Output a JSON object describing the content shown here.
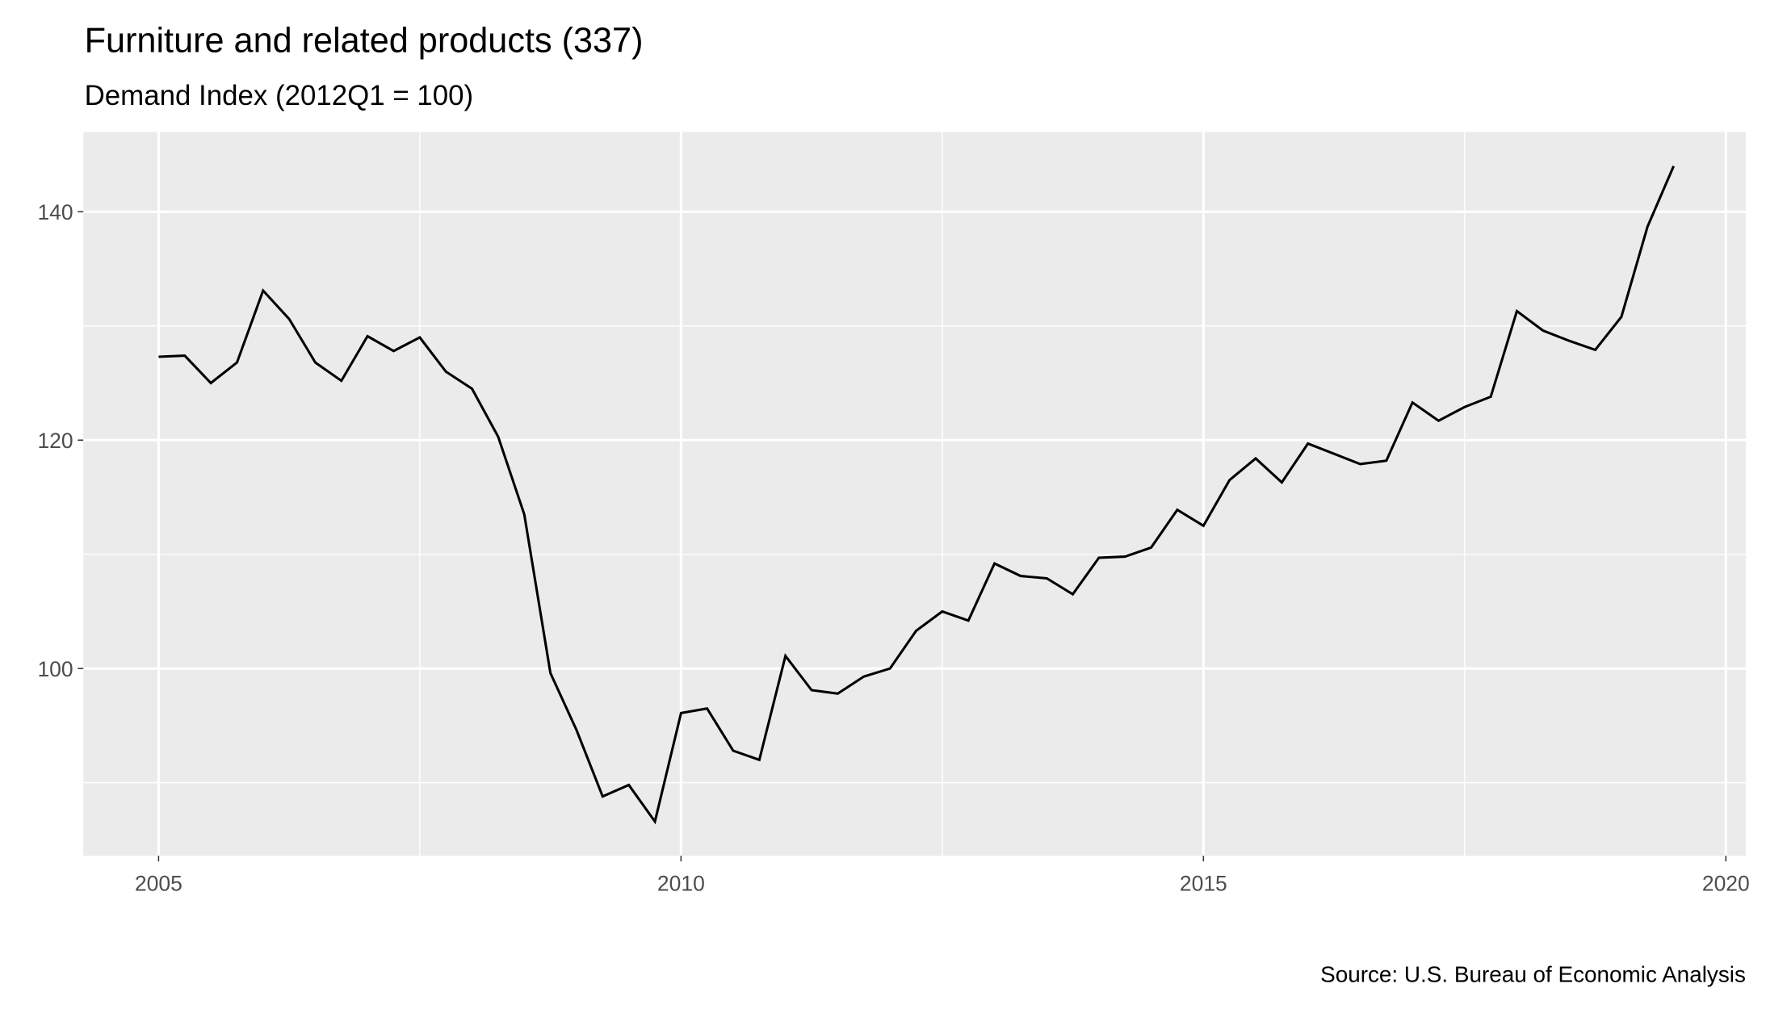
{
  "chart_data": {
    "type": "line",
    "title": "Furniture and related products (337)",
    "subtitle": "Demand Index (2012Q1 = 100)",
    "caption": "Source: U.S. Bureau of Economic Analysis",
    "xlabel": "",
    "ylabel": "",
    "xlim": [
      2004.28,
      2020.19
    ],
    "ylim": [
      83.6,
      147.0
    ],
    "x_ticks": [
      2005,
      2010,
      2015,
      2020
    ],
    "x_tick_labels": [
      "2005",
      "2010",
      "2015",
      "2020"
    ],
    "y_ticks": [
      100,
      120,
      140
    ],
    "y_tick_labels": [
      "100",
      "120",
      "140"
    ],
    "x_minor": [
      2007.5,
      2012.5,
      2017.5
    ],
    "y_minor": [
      90,
      110,
      130
    ],
    "grid": true,
    "colors": {
      "panel": "#EBEBEB",
      "grid": "#FFFFFF",
      "line": "#000000",
      "text": "#000000",
      "tick_text": "#4D4D4D"
    },
    "series": [
      {
        "name": "Demand Index",
        "x": [
          2005.0,
          2005.25,
          2005.5,
          2005.75,
          2006.0,
          2006.25,
          2006.5,
          2006.75,
          2007.0,
          2007.25,
          2007.5,
          2007.75,
          2008.0,
          2008.25,
          2008.5,
          2008.75,
          2009.0,
          2009.25,
          2009.5,
          2009.75,
          2010.0,
          2010.25,
          2010.5,
          2010.75,
          2011.0,
          2011.25,
          2011.5,
          2011.75,
          2012.0,
          2012.25,
          2012.5,
          2012.75,
          2013.0,
          2013.25,
          2013.5,
          2013.75,
          2014.0,
          2014.25,
          2014.5,
          2014.75,
          2015.0,
          2015.25,
          2015.5,
          2015.75,
          2016.0,
          2016.25,
          2016.5,
          2016.75,
          2017.0,
          2017.25,
          2017.5,
          2017.75,
          2018.0,
          2018.25,
          2018.5,
          2018.75,
          2019.0,
          2019.25,
          2019.5
        ],
        "values": [
          127.3,
          127.4,
          125.0,
          126.8,
          133.1,
          130.6,
          126.8,
          125.2,
          129.1,
          127.8,
          129.0,
          126.0,
          124.5,
          120.3,
          113.5,
          99.6,
          94.6,
          88.8,
          89.8,
          86.6,
          96.1,
          96.5,
          92.8,
          92.0,
          101.1,
          98.1,
          97.8,
          99.3,
          100.0,
          103.3,
          105.0,
          104.2,
          109.2,
          108.1,
          107.9,
          106.5,
          109.7,
          109.8,
          110.6,
          113.9,
          112.5,
          116.5,
          118.4,
          116.3,
          119.7,
          118.8,
          117.9,
          118.2,
          123.3,
          121.7,
          122.9,
          123.8,
          131.3,
          129.6,
          128.7,
          127.9,
          130.8,
          138.7,
          144.0
        ]
      }
    ]
  }
}
